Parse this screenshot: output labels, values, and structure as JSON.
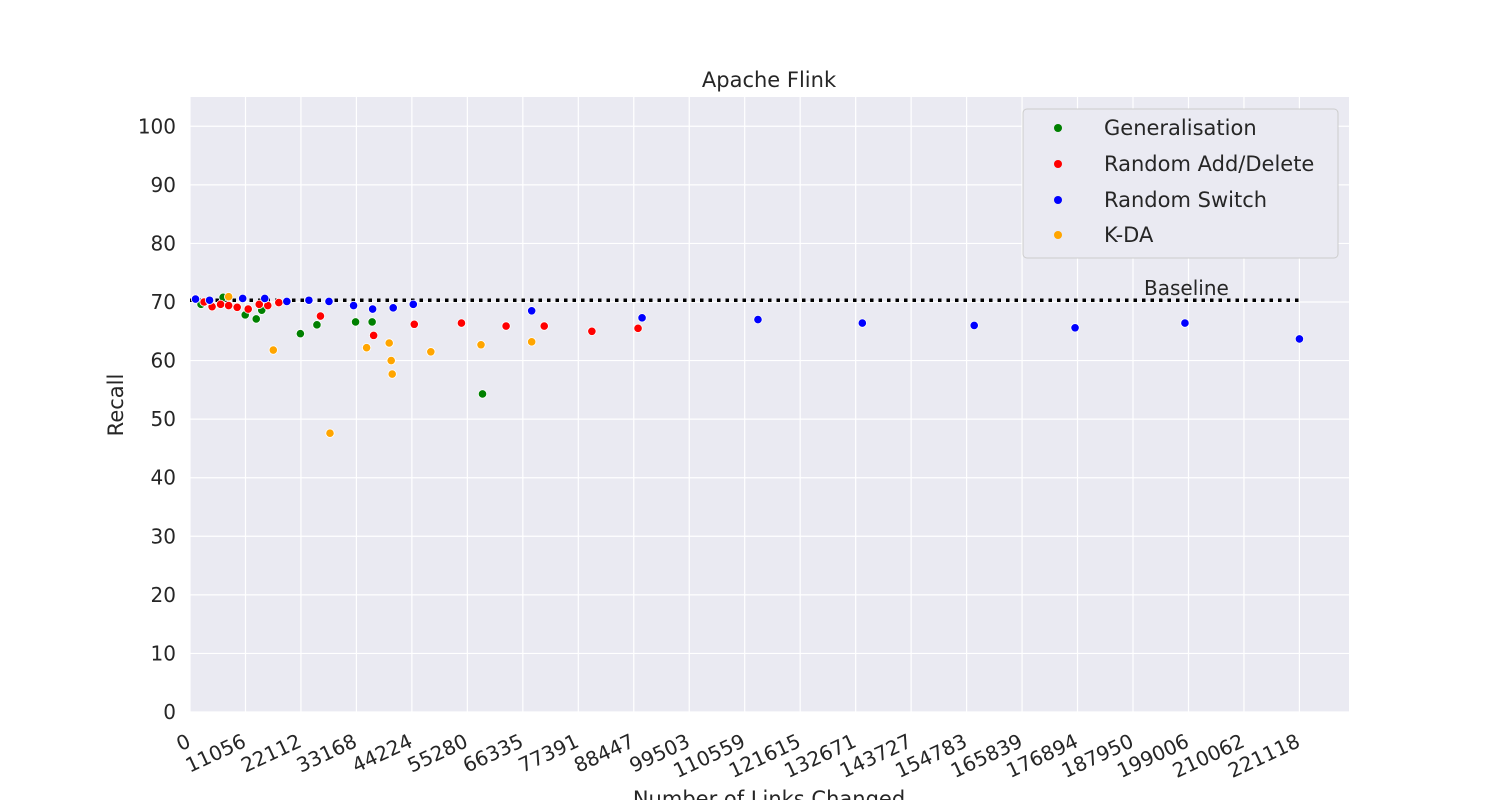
{
  "chart_data": {
    "type": "scatter",
    "title": "Apache Flink",
    "xlabel": "Number of Links Changed",
    "ylabel": "Recall",
    "xlim": [
      0,
      231000
    ],
    "ylim": [
      0,
      105
    ],
    "x_ticks": [
      0,
      11056,
      22112,
      33168,
      44224,
      55280,
      66335,
      77391,
      88447,
      99503,
      110559,
      121615,
      132671,
      143727,
      154783,
      165839,
      176894,
      187950,
      199006,
      210062,
      221118
    ],
    "y_ticks": [
      0,
      10,
      20,
      30,
      40,
      50,
      60,
      70,
      80,
      90,
      100
    ],
    "grid": true,
    "legend_position": "top-right",
    "baseline": {
      "label": "Baseline",
      "y": 70.3,
      "x_range": [
        0,
        221118
      ],
      "color": "#000000"
    },
    "series": [
      {
        "name": "Generalisation",
        "color": "#008000",
        "points": [
          [
            2200,
            69.6
          ],
          [
            6600,
            70.8
          ],
          [
            11000,
            67.8
          ],
          [
            13200,
            67.1
          ],
          [
            14300,
            68.6
          ],
          [
            22000,
            64.6
          ],
          [
            25300,
            66.1
          ],
          [
            33000,
            66.6
          ],
          [
            36300,
            66.6
          ],
          [
            58300,
            54.3
          ]
        ]
      },
      {
        "name": "Random Add/Delete",
        "color": "#ff0000",
        "points": [
          [
            1100,
            70.6
          ],
          [
            2800,
            70.0
          ],
          [
            4400,
            69.2
          ],
          [
            6100,
            69.6
          ],
          [
            7700,
            69.4
          ],
          [
            9400,
            69.1
          ],
          [
            11600,
            68.8
          ],
          [
            13800,
            69.6
          ],
          [
            15500,
            69.4
          ],
          [
            17700,
            69.9
          ],
          [
            26000,
            67.6
          ],
          [
            36600,
            64.3
          ],
          [
            44700,
            66.2
          ],
          [
            54100,
            66.4
          ],
          [
            63000,
            65.9
          ],
          [
            70600,
            65.9
          ],
          [
            80100,
            65.0
          ],
          [
            89300,
            65.5
          ]
        ]
      },
      {
        "name": "Random Switch",
        "color": "#0000ff",
        "points": [
          [
            1100,
            70.5
          ],
          [
            3900,
            70.3
          ],
          [
            10500,
            70.6
          ],
          [
            14900,
            70.6
          ],
          [
            19300,
            70.1
          ],
          [
            23700,
            70.3
          ],
          [
            27700,
            70.1
          ],
          [
            32600,
            69.4
          ],
          [
            36400,
            68.8
          ],
          [
            40500,
            69.0
          ],
          [
            44500,
            69.6
          ],
          [
            68100,
            68.5
          ],
          [
            90100,
            67.3
          ],
          [
            113200,
            67.0
          ],
          [
            134000,
            66.4
          ],
          [
            156300,
            66.0
          ],
          [
            176400,
            65.6
          ],
          [
            198300,
            66.4
          ],
          [
            221118,
            63.7
          ]
        ]
      },
      {
        "name": "K-DA",
        "color": "#ffa500",
        "points": [
          [
            7700,
            70.9
          ],
          [
            16600,
            61.8
          ],
          [
            27900,
            47.6
          ],
          [
            35200,
            62.2
          ],
          [
            39700,
            63.0
          ],
          [
            40100,
            60.0
          ],
          [
            40300,
            57.7
          ],
          [
            48000,
            61.5
          ],
          [
            58000,
            62.7
          ],
          [
            68100,
            63.2
          ]
        ]
      }
    ]
  }
}
